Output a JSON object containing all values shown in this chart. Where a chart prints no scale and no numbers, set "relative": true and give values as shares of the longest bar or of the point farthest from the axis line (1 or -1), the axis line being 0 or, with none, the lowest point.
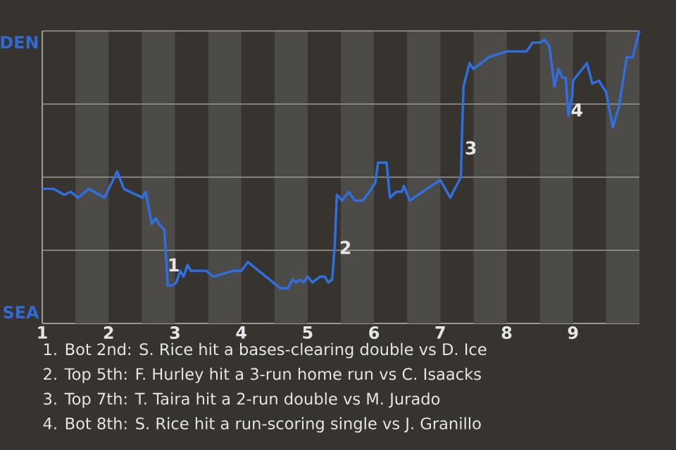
{
  "chart_data": {
    "type": "line",
    "relative": true,
    "x": [
      1.0,
      1.17,
      1.33,
      1.43,
      1.54,
      1.7,
      1.94,
      2.13,
      2.23,
      2.51,
      2.56,
      2.65,
      2.71,
      2.76,
      2.84,
      2.88,
      2.89,
      2.96,
      3.02,
      3.08,
      3.13,
      3.19,
      3.24,
      3.47,
      3.58,
      3.88,
      4.0,
      4.1,
      4.37,
      4.59,
      4.7,
      4.77,
      4.83,
      4.88,
      4.94,
      5.0,
      5.07,
      5.19,
      5.26,
      5.31,
      5.37,
      5.41,
      5.44,
      5.52,
      5.62,
      5.71,
      5.83,
      5.93,
      6.02,
      6.06,
      6.19,
      6.24,
      6.34,
      6.42,
      6.45,
      6.54,
      6.73,
      7.0,
      7.15,
      7.24,
      7.31,
      7.33,
      7.35,
      7.44,
      7.5,
      7.73,
      8.0,
      8.11,
      8.15,
      8.22,
      8.3,
      8.39,
      8.5,
      8.57,
      8.64,
      8.66,
      8.72,
      8.78,
      8.84,
      8.89,
      8.93,
      8.99,
      9.0,
      9.21,
      9.29,
      9.39,
      9.5,
      9.6,
      9.69,
      9.81,
      9.9,
      10.0
    ],
    "series": [
      {
        "color": "#2f6fdf",
        "values": [
          0.46,
          0.46,
          0.44,
          0.45,
          0.43,
          0.46,
          0.43,
          0.52,
          0.46,
          0.43,
          0.45,
          0.34,
          0.36,
          0.34,
          0.32,
          0.18,
          0.13,
          0.13,
          0.14,
          0.18,
          0.16,
          0.2,
          0.18,
          0.18,
          0.16,
          0.18,
          0.18,
          0.21,
          0.16,
          0.12,
          0.12,
          0.15,
          0.14,
          0.15,
          0.14,
          0.16,
          0.14,
          0.16,
          0.16,
          0.14,
          0.15,
          0.27,
          0.44,
          0.42,
          0.45,
          0.42,
          0.42,
          0.45,
          0.48,
          0.55,
          0.55,
          0.43,
          0.45,
          0.45,
          0.47,
          0.42,
          0.45,
          0.49,
          0.43,
          0.47,
          0.5,
          0.67,
          0.81,
          0.89,
          0.87,
          0.91,
          0.93,
          0.93,
          0.93,
          0.93,
          0.93,
          0.96,
          0.96,
          0.97,
          0.95,
          0.92,
          0.81,
          0.87,
          0.84,
          0.84,
          0.71,
          0.78,
          0.83,
          0.89,
          0.82,
          0.83,
          0.79,
          0.67,
          0.74,
          0.91,
          0.91,
          1.0
        ]
      }
    ],
    "xlim": [
      1,
      10
    ],
    "xticks": [
      1,
      2,
      3,
      4,
      5,
      6,
      7,
      8,
      9
    ],
    "ref_lines": [
      {
        "axis": "y",
        "value": 0.25,
        "color": "#9b9894"
      },
      {
        "axis": "y",
        "value": 0.5,
        "color": "#9b9894"
      },
      {
        "axis": "y",
        "value": 0.75,
        "color": "#9b9894"
      },
      {
        "axis": "y",
        "value": 1,
        "color": "#9b9894"
      }
    ],
    "bands": [
      {
        "axis": "x",
        "from": 1.5,
        "to": 2,
        "color": "#4d4b48"
      },
      {
        "axis": "x",
        "from": 2.5,
        "to": 3,
        "color": "#4d4b48"
      },
      {
        "axis": "x",
        "from": 3.5,
        "to": 4,
        "color": "#4d4b48"
      },
      {
        "axis": "x",
        "from": 4.5,
        "to": 5,
        "color": "#4d4b48"
      },
      {
        "axis": "x",
        "from": 5.5,
        "to": 6,
        "color": "#4d4b48"
      },
      {
        "axis": "x",
        "from": 6.5,
        "to": 7,
        "color": "#4d4b48"
      },
      {
        "axis": "x",
        "from": 7.5,
        "to": 8,
        "color": "#4d4b48"
      },
      {
        "axis": "x",
        "from": 8.5,
        "to": 9,
        "color": "#4d4b48"
      },
      {
        "axis": "x",
        "from": 9.5,
        "to": 10,
        "color": "#4d4b48"
      }
    ],
    "annotations": [
      {
        "text": "1",
        "x": 2.98,
        "y": 0.2
      },
      {
        "text": "2",
        "x": 5.57,
        "y": 0.26
      },
      {
        "text": "3",
        "x": 7.46,
        "y": 0.6
      },
      {
        "text": "4",
        "x": 9.06,
        "y": 0.73
      },
      "DEN",
      "SEA",
      "1. Bot 2nd: S. Rice hit a bases-clearing double vs D. Ice",
      "2. Top 5th: F. Hurley hit a 3-run home run vs C. Isaacks",
      "3. Top 7th: T. Taira hit a 2-run double vs M. Jurado",
      "4. Bot 8th: S. Rice hit a run-scoring single vs J. Granillo"
    ]
  }
}
